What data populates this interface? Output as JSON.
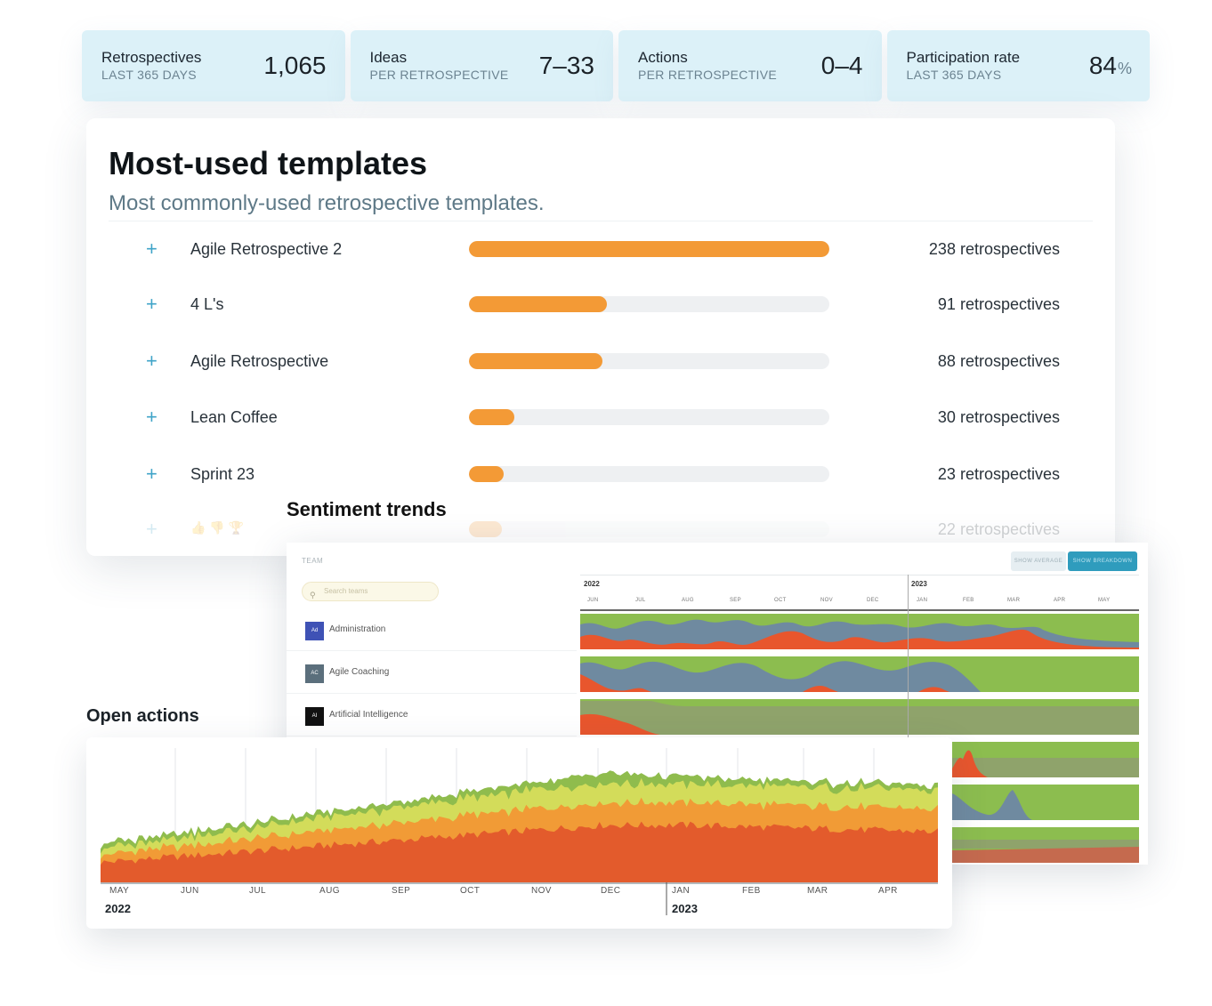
{
  "stats": [
    {
      "label": "Retrospectives",
      "sub": "LAST 365 DAYS",
      "value": "1,065",
      "unit": ""
    },
    {
      "label": "Ideas",
      "sub": "PER RETROSPECTIVE",
      "value": "7–33",
      "unit": ""
    },
    {
      "label": "Actions",
      "sub": "PER RETROSPECTIVE",
      "value": "0–4",
      "unit": ""
    },
    {
      "label": "Participation rate",
      "sub": "LAST 365 DAYS",
      "value": "84",
      "unit": "%"
    }
  ],
  "templates": {
    "title": "Most-used templates",
    "subtitle": "Most commonly-used retrospective templates.",
    "max_value": 238,
    "items": [
      {
        "name": "Agile Retrospective 2",
        "count": 238,
        "count_label": "238 retrospectives"
      },
      {
        "name": "4 L's",
        "count": 91,
        "count_label": "91 retrospectives"
      },
      {
        "name": "Agile Retrospective",
        "count": 88,
        "count_label": "88 retrospectives"
      },
      {
        "name": "Lean Coffee",
        "count": 30,
        "count_label": "30 retrospectives"
      },
      {
        "name": "Sprint 23",
        "count": 23,
        "count_label": "23 retrospectives"
      },
      {
        "name": "👍👎🏆",
        "count": 22,
        "count_label": "22 retrospectives"
      }
    ]
  },
  "sentiment": {
    "title": "Sentiment trends",
    "team_label": "TEAM",
    "search_placeholder": "Search teams",
    "buttons": {
      "average": "SHOW AVERAGE",
      "breakdown": "SHOW BREAKDOWN"
    },
    "years": [
      "2022",
      "2023"
    ],
    "months": [
      "JUN",
      "JUL",
      "AUG",
      "SEP",
      "OCT",
      "NOV",
      "DEC",
      "JAN",
      "FEB",
      "MAR",
      "APR",
      "MAY"
    ],
    "teams": [
      {
        "initials": "Ad",
        "name": "Administration",
        "color": "#3f52b5"
      },
      {
        "initials": "AC",
        "name": "Agile Coaching",
        "color": "#5b6f7c"
      },
      {
        "initials": "AI",
        "name": "Artificial Intelligence",
        "color": "#111111"
      }
    ],
    "colors": {
      "positive": "#8cbd4f",
      "neutral": "#6f8aa0",
      "negative": "#e8562d"
    }
  },
  "open_actions": {
    "title": "Open actions",
    "months": [
      "MAY",
      "JUN",
      "JUL",
      "AUG",
      "SEP",
      "OCT",
      "NOV",
      "DEC",
      "JAN",
      "FEB",
      "MAR",
      "APR"
    ],
    "years": [
      "2022",
      "2023"
    ],
    "colors": [
      "#e35b2c",
      "#f19b36",
      "#d3dc5a",
      "#8fbc4d"
    ]
  }
}
